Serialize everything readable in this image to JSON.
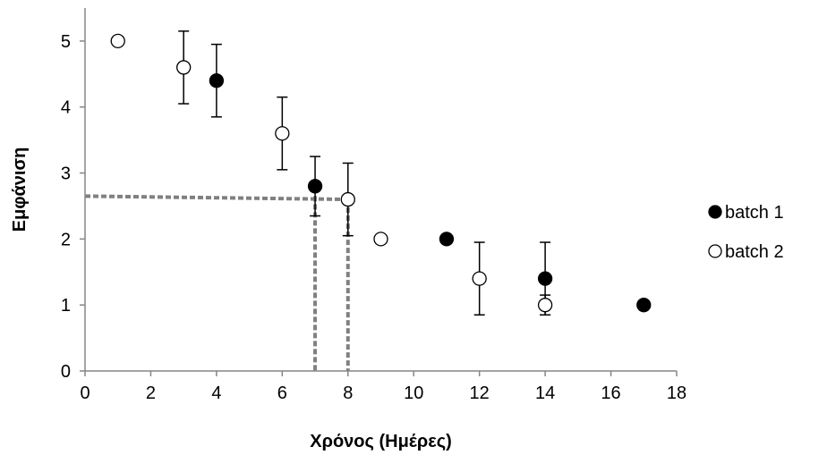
{
  "chart_data": {
    "type": "scatter",
    "xlabel": "Χρόνος (Ημέρες)",
    "ylabel": "Εμφάνιση",
    "xlim": [
      0,
      18
    ],
    "ylim": [
      0,
      5.5
    ],
    "x_ticks": [
      0,
      2,
      4,
      6,
      8,
      10,
      12,
      14,
      16,
      18
    ],
    "y_ticks": [
      0,
      1,
      2,
      3,
      4,
      5
    ],
    "grid": false,
    "legend_position": "right",
    "series": [
      {
        "name": "batch 1",
        "marker": "filled-circle",
        "color": "#000000",
        "points": [
          {
            "x": 4,
            "y": 4.4,
            "err": 0.55
          },
          {
            "x": 7,
            "y": 2.8,
            "err": 0.45
          },
          {
            "x": 11,
            "y": 2.0,
            "err": 0
          },
          {
            "x": 14,
            "y": 1.4,
            "err": 0.55
          },
          {
            "x": 17,
            "y": 1.0,
            "err": 0
          }
        ]
      },
      {
        "name": "batch 2",
        "marker": "open-circle",
        "color": "#000000",
        "points": [
          {
            "x": 1,
            "y": 5.0,
            "err": 0
          },
          {
            "x": 3,
            "y": 4.6,
            "err": 0.55
          },
          {
            "x": 6,
            "y": 3.6,
            "err": 0.55
          },
          {
            "x": 8,
            "y": 2.6,
            "err": 0.55
          },
          {
            "x": 9,
            "y": 2.0,
            "err": 0
          },
          {
            "x": 12,
            "y": 1.4,
            "err": 0.55
          },
          {
            "x": 14,
            "y": 1.0,
            "err": 0.15
          }
        ]
      }
    ],
    "reference_lines": [
      {
        "from": [
          0,
          2.65
        ],
        "to": [
          8,
          2.6
        ],
        "style": "dashed",
        "color": "#808080"
      },
      {
        "from": [
          7,
          2.65
        ],
        "to": [
          7,
          0
        ],
        "style": "dashed",
        "color": "#808080"
      },
      {
        "from": [
          8,
          2.6
        ],
        "to": [
          8,
          0
        ],
        "style": "dashed",
        "color": "#808080"
      }
    ]
  }
}
